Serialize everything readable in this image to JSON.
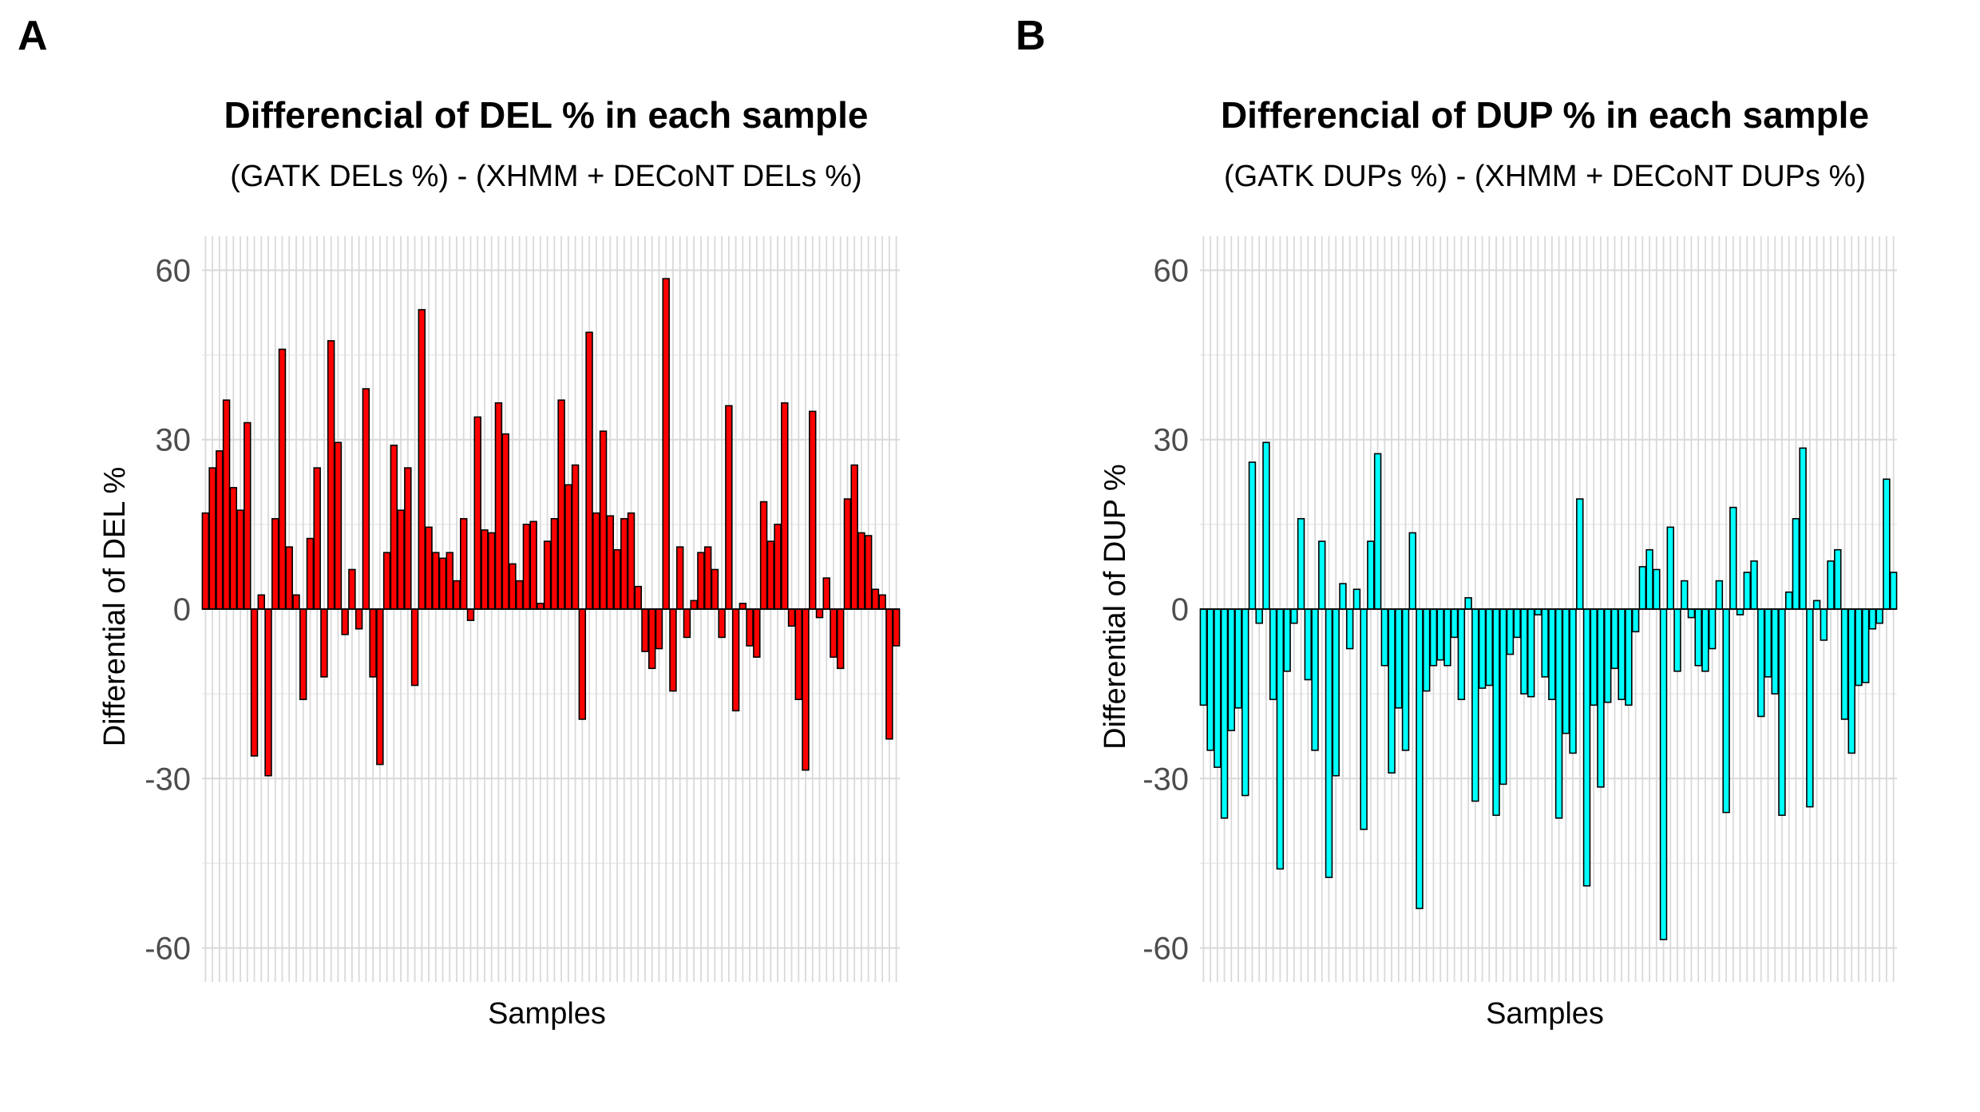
{
  "chart_data": [
    {
      "type": "bar",
      "panel": "A",
      "title": "Differencial of DEL % in each sample",
      "subtitle": "(GATK DELs %) - (XHMM + DECoNT DELs %)",
      "xlabel": "Samples",
      "ylabel": "Differential of DEL %",
      "ylim": [
        -66,
        66
      ],
      "yticks": [
        60,
        30,
        0,
        -30,
        -60
      ],
      "ytick_labels": [
        "60",
        "30",
        "0",
        "-30",
        "-60"
      ],
      "grid": true,
      "legend": "none",
      "bar_color": "#ff0000",
      "bar_edge_color": "#000000",
      "values": [
        17,
        25,
        28,
        37,
        21.5,
        17.5,
        33,
        -26,
        2.5,
        -29.5,
        16,
        46,
        11,
        2.5,
        -16,
        12.5,
        25,
        -12,
        47.5,
        29.5,
        -4.5,
        7,
        -3.5,
        39,
        -12,
        -27.5,
        10,
        29,
        17.5,
        25,
        -13.5,
        53,
        14.5,
        10,
        9,
        10,
        5,
        16,
        -2,
        34,
        14,
        13.5,
        36.5,
        31,
        8,
        5,
        15,
        15.5,
        1,
        12,
        16,
        37,
        22,
        25.5,
        -19.5,
        49,
        17,
        31.5,
        16.5,
        10.5,
        16,
        17,
        4,
        -7.5,
        -10.5,
        -7,
        58.5,
        -14.5,
        11,
        -5,
        1.5,
        10,
        11,
        7,
        -5,
        36,
        -18,
        1,
        -6.5,
        -8.5,
        19,
        12,
        15,
        36.5,
        -3,
        -16,
        -28.5,
        35,
        -1.5,
        5.5,
        -8.5,
        -10.5,
        19.5,
        25.5,
        13.5,
        13,
        3.5,
        2.5,
        -23,
        -6.5
      ]
    },
    {
      "type": "bar",
      "panel": "B",
      "title": "Differencial of DUP % in each sample",
      "subtitle": "(GATK DUPs %) - (XHMM + DECoNT DUPs %)",
      "xlabel": "Samples",
      "ylabel": "Differential of DUP %",
      "ylim": [
        -66,
        66
      ],
      "yticks": [
        60,
        30,
        0,
        -30,
        -60
      ],
      "ytick_labels": [
        "60",
        "30",
        "0",
        "-30",
        "-60"
      ],
      "grid": true,
      "legend": "none",
      "bar_color": "#00ffff",
      "bar_edge_color": "#000000",
      "values": [
        -17,
        -25,
        -28,
        -37,
        -21.5,
        -17.5,
        -33,
        26,
        -2.5,
        29.5,
        -16,
        -46,
        -11,
        -2.5,
        16,
        -12.5,
        -25,
        12,
        -47.5,
        -29.5,
        4.5,
        -7,
        3.5,
        -39,
        12,
        27.5,
        -10,
        -29,
        -17.5,
        -25,
        13.5,
        -53,
        -14.5,
        -10,
        -9,
        -10,
        -5,
        -16,
        2,
        -34,
        -14,
        -13.5,
        -36.5,
        -31,
        -8,
        -5,
        -15,
        -15.5,
        -1,
        -12,
        -16,
        -37,
        -22,
        -25.5,
        19.5,
        -49,
        -17,
        -31.5,
        -16.5,
        -10.5,
        -16,
        -17,
        -4,
        7.5,
        10.5,
        7,
        -58.5,
        14.5,
        -11,
        5,
        -1.5,
        -10,
        -11,
        -7,
        5,
        -36,
        18,
        -1,
        6.5,
        8.5,
        -19,
        -12,
        -15,
        -36.5,
        3,
        16,
        28.5,
        -35,
        1.5,
        -5.5,
        8.5,
        10.5,
        -19.5,
        -25.5,
        -13.5,
        -13,
        -3.5,
        -2.5,
        23,
        6.5
      ]
    }
  ]
}
